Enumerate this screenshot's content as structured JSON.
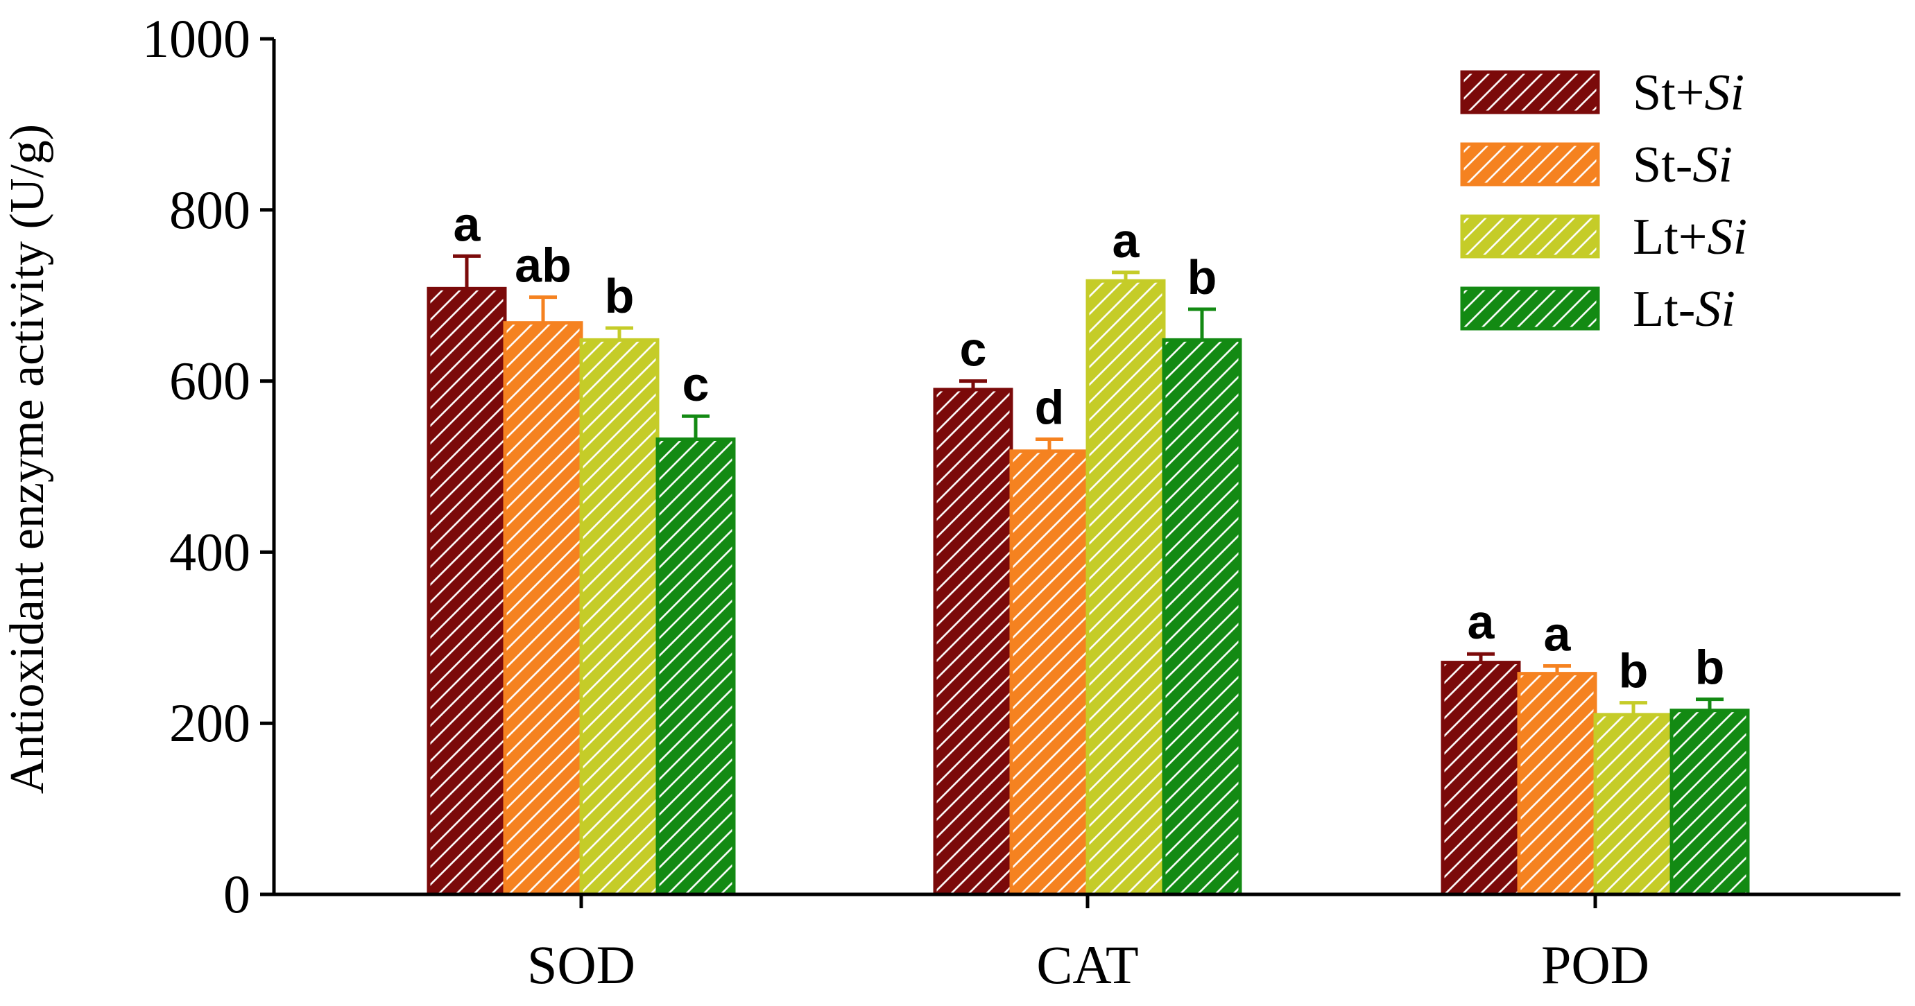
{
  "chart_data": {
    "type": "bar",
    "title": "",
    "xlabel": "",
    "ylabel": "Antioxidant enzyme activity (U/g)",
    "ylim": [
      0,
      1000
    ],
    "yticks": [
      0,
      200,
      400,
      600,
      800,
      1000
    ],
    "grid": false,
    "legend_position": "top-right",
    "categories": [
      "SOD",
      "CAT",
      "POD"
    ],
    "series": [
      {
        "name": "St+Si",
        "prefix": "St+",
        "suffix": "Si",
        "color": "#7b0a0a",
        "values": [
          708,
          590,
          271
        ],
        "errors": [
          38,
          10,
          10
        ],
        "letters": [
          "a",
          "c",
          "a"
        ]
      },
      {
        "name": "St-Si",
        "prefix": "St-",
        "suffix": "Si",
        "color": "#f58220",
        "values": [
          668,
          518,
          258
        ],
        "errors": [
          30,
          14,
          9
        ],
        "letters": [
          "ab",
          "d",
          "a"
        ]
      },
      {
        "name": "Lt+Si",
        "prefix": "Lt+",
        "suffix": "Si",
        "color": "#c5cc28",
        "values": [
          648,
          717,
          210
        ],
        "errors": [
          14,
          10,
          14
        ],
        "letters": [
          "b",
          "a",
          "b"
        ]
      },
      {
        "name": "Lt-Si",
        "prefix": "Lt-",
        "suffix": "Si",
        "color": "#138a13",
        "values": [
          532,
          648,
          215
        ],
        "errors": [
          27,
          36,
          13
        ],
        "letters": [
          "c",
          "b",
          "b"
        ]
      }
    ]
  }
}
